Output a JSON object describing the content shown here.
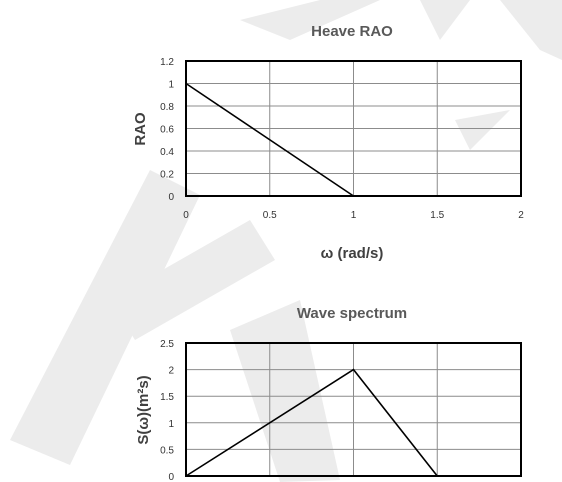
{
  "chart_data": [
    {
      "type": "line",
      "title": "Heave RAO",
      "xlabel": "ω (rad/s)",
      "ylabel": "RAO",
      "xlim": [
        0,
        2
      ],
      "ylim": [
        0,
        1.2
      ],
      "x_ticks": [
        "0",
        "0.5",
        "1",
        "1.5",
        "2"
      ],
      "y_ticks": [
        "0",
        "0.2",
        "0.4",
        "0.6",
        "0.8",
        "1",
        "1.2"
      ],
      "grid": true,
      "series": [
        {
          "x": [
            0,
            1,
            1.5
          ],
          "y": [
            1,
            0,
            0
          ]
        }
      ]
    },
    {
      "type": "line",
      "title": "Wave spectrum",
      "xlabel": "",
      "ylabel": "S(ω)(m²s)",
      "xlim": [
        0,
        2
      ],
      "ylim": [
        0,
        2.5
      ],
      "x_ticks": [],
      "y_ticks": [
        "0",
        "0.5",
        "1",
        "1.5",
        "2",
        "2.5"
      ],
      "grid": true,
      "series": [
        {
          "x": [
            0,
            1,
            1.5
          ],
          "y": [
            0,
            2,
            0
          ]
        }
      ]
    }
  ],
  "colors": {
    "line": "#000000",
    "grid": "#8c8c8c",
    "title": "#595959",
    "watermark": "#e6e6e6"
  }
}
